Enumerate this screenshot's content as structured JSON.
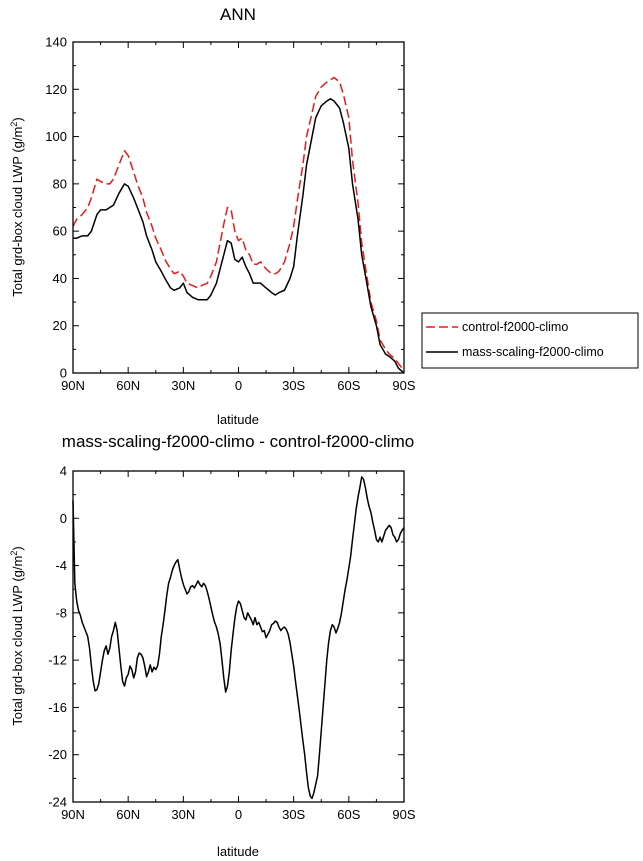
{
  "chart_data": [
    {
      "type": "line",
      "title": "ANN",
      "xlabel": "latitude",
      "ylabel": "Total grd-box cloud LWP (g/m",
      "ylabel_sup": "2",
      "ylabel_close": ")",
      "xlim": [
        90,
        -90
      ],
      "ylim": [
        0,
        140
      ],
      "xticks": [
        90,
        60,
        30,
        0,
        -30,
        -60,
        -90
      ],
      "xtick_labels": [
        "90N",
        "60N",
        "30N",
        "0",
        "30S",
        "60S",
        "90S"
      ],
      "yticks": [
        0,
        20,
        40,
        60,
        80,
        100,
        120,
        140
      ],
      "ytick_labels": [
        "0",
        "20",
        "40",
        "60",
        "80",
        "100",
        "120",
        "140"
      ],
      "grid": false,
      "legend_position": "outside-right",
      "series": [
        {
          "name": "control-f2000-climo",
          "color": "#e8191b",
          "dash": "dashed",
          "x": [
            90,
            88,
            85,
            82,
            80,
            77,
            75,
            72,
            70,
            68,
            65,
            62,
            60,
            57,
            55,
            52,
            50,
            47,
            45,
            42,
            40,
            37,
            35,
            32,
            30,
            28,
            25,
            22,
            20,
            17,
            15,
            12,
            10,
            8,
            6,
            4,
            2,
            0,
            -2,
            -4,
            -6,
            -8,
            -10,
            -12,
            -15,
            -18,
            -20,
            -22,
            -25,
            -28,
            -30,
            -32,
            -35,
            -37,
            -40,
            -42,
            -45,
            -48,
            -50,
            -52,
            -55,
            -57,
            -60,
            -62,
            -65,
            -67,
            -70,
            -72,
            -75,
            -77,
            -80,
            -82,
            -85,
            -87,
            -90
          ],
          "y": [
            62,
            65,
            67,
            70,
            74,
            82,
            81,
            80,
            80,
            82,
            88,
            94,
            92,
            85,
            80,
            74,
            68,
            62,
            57,
            52,
            48,
            44,
            42,
            43,
            41,
            38,
            37,
            36,
            37,
            38,
            41,
            47,
            55,
            63,
            70,
            69,
            60,
            56,
            57,
            52,
            50,
            46,
            46,
            47,
            44,
            42,
            42,
            43,
            47,
            55,
            62,
            73,
            88,
            100,
            110,
            117,
            121,
            123,
            124,
            125,
            123,
            118,
            108,
            90,
            72,
            55,
            40,
            30,
            22,
            14,
            10,
            8,
            6,
            4,
            1
          ]
        },
        {
          "name": "mass-scaling-f2000-climo",
          "color": "#000000",
          "dash": "solid",
          "x": [
            90,
            88,
            85,
            82,
            80,
            77,
            75,
            72,
            70,
            68,
            65,
            62,
            60,
            57,
            55,
            52,
            50,
            47,
            45,
            42,
            40,
            37,
            35,
            32,
            30,
            28,
            25,
            22,
            20,
            17,
            15,
            12,
            10,
            8,
            6,
            4,
            2,
            0,
            -2,
            -4,
            -6,
            -8,
            -10,
            -12,
            -15,
            -18,
            -20,
            -22,
            -25,
            -28,
            -30,
            -32,
            -35,
            -37,
            -40,
            -42,
            -45,
            -48,
            -50,
            -52,
            -55,
            -57,
            -60,
            -62,
            -65,
            -67,
            -70,
            -72,
            -75,
            -77,
            -80,
            -82,
            -85,
            -87,
            -90
          ],
          "y": [
            57,
            57,
            58,
            58,
            60,
            67,
            69,
            69,
            70,
            71,
            76,
            80,
            79,
            74,
            70,
            64,
            58,
            52,
            47,
            43,
            40,
            36,
            35,
            36,
            38,
            34,
            32,
            31,
            31,
            31,
            33,
            38,
            44,
            50,
            56,
            55,
            48,
            47,
            49,
            45,
            42,
            38,
            38,
            38,
            36,
            34,
            33,
            34,
            35,
            40,
            45,
            58,
            75,
            88,
            100,
            108,
            113,
            115,
            116,
            115,
            112,
            106,
            95,
            80,
            65,
            50,
            37,
            28,
            20,
            12,
            8,
            7,
            5,
            2,
            0
          ]
        }
      ]
    },
    {
      "type": "line",
      "title": "mass-scaling-f2000-climo - control-f2000-climo",
      "xlabel": "latitude",
      "ylabel": "Total grd-box cloud LWP (g/m",
      "ylabel_sup": "2",
      "ylabel_close": ")",
      "xlim": [
        90,
        -90
      ],
      "ylim": [
        -24,
        4
      ],
      "xticks": [
        90,
        60,
        30,
        0,
        -30,
        -60,
        -90
      ],
      "xtick_labels": [
        "90N",
        "60N",
        "30N",
        "0",
        "30S",
        "60S",
        "90S"
      ],
      "yticks": [
        -24,
        -20,
        -16,
        -12,
        -8,
        -4,
        0,
        4
      ],
      "ytick_labels": [
        "-24",
        "-20",
        "-16",
        "-12",
        "-8",
        "-4",
        "0",
        "4"
      ],
      "grid": false,
      "series": [
        {
          "color": "#000000",
          "dash": "solid",
          "x": [
            90,
            89.5,
            89,
            88,
            87,
            86,
            85,
            84,
            83,
            82,
            81,
            80,
            79,
            78,
            77,
            76,
            75,
            74,
            73,
            72,
            71,
            70,
            69,
            68,
            67,
            66,
            65,
            64,
            63,
            62,
            61,
            60,
            59,
            58,
            57,
            56,
            55,
            54,
            53,
            52,
            51,
            50,
            49,
            48,
            47,
            46,
            45,
            44,
            43,
            42,
            41,
            40,
            39,
            38,
            37,
            36,
            35,
            34,
            33,
            32,
            31,
            30,
            29,
            28,
            27,
            26,
            25,
            24,
            23,
            22,
            21,
            20,
            19,
            18,
            17,
            16,
            15,
            14,
            13,
            12,
            11,
            10,
            9,
            8,
            7,
            6,
            5,
            4,
            3,
            2,
            1,
            0,
            -1,
            -2,
            -3,
            -4,
            -5,
            -6,
            -7,
            -8,
            -9,
            -10,
            -11,
            -12,
            -13,
            -14,
            -15,
            -16,
            -17,
            -18,
            -19,
            -20,
            -21,
            -22,
            -23,
            -24,
            -25,
            -26,
            -27,
            -28,
            -29,
            -30,
            -31,
            -32,
            -33,
            -34,
            -35,
            -36,
            -37,
            -38,
            -39,
            -40,
            -41,
            -42,
            -43,
            -44,
            -45,
            -46,
            -47,
            -48,
            -49,
            -50,
            -51,
            -52,
            -53,
            -54,
            -55,
            -56,
            -57,
            -58,
            -59,
            -60,
            -61,
            -62,
            -63,
            -64,
            -65,
            -66,
            -67,
            -68,
            -69,
            -70,
            -71,
            -72,
            -73,
            -74,
            -75,
            -76,
            -77,
            -78,
            -79,
            -80,
            -81,
            -82,
            -83,
            -84,
            -85,
            -86,
            -87,
            -88,
            -89,
            -90
          ],
          "y": [
            1.5,
            -2,
            -5.5,
            -7,
            -7.8,
            -8.2,
            -8.8,
            -9.2,
            -9.6,
            -10,
            -11,
            -12.5,
            -13.8,
            -14.6,
            -14.5,
            -14,
            -13,
            -12,
            -11.2,
            -10.8,
            -11.5,
            -11,
            -10,
            -9.5,
            -8.8,
            -9.5,
            -11,
            -12.5,
            -13.8,
            -14.2,
            -13.5,
            -13.2,
            -12.5,
            -12.8,
            -13.5,
            -13,
            -11.8,
            -11.4,
            -11.5,
            -11.8,
            -12.5,
            -13.4,
            -13,
            -12.4,
            -13,
            -12.6,
            -12.8,
            -12.5,
            -11.5,
            -10,
            -9,
            -7.8,
            -6.5,
            -5.5,
            -5,
            -4.4,
            -4,
            -3.7,
            -3.5,
            -4.3,
            -5,
            -5.6,
            -6,
            -6.4,
            -6.2,
            -5.8,
            -5.7,
            -5.9,
            -5.6,
            -5.3,
            -5.6,
            -5.8,
            -5.5,
            -5.7,
            -6.2,
            -6.8,
            -7.5,
            -8.2,
            -8.8,
            -9.2,
            -9.8,
            -10.6,
            -12,
            -13.5,
            -14.7,
            -14.2,
            -13,
            -11.2,
            -9.8,
            -8.5,
            -7.5,
            -7,
            -7.2,
            -7.8,
            -8.4,
            -8.6,
            -8,
            -8.3,
            -8.6,
            -9,
            -8.4,
            -9,
            -8.8,
            -9.2,
            -9.6,
            -9.5,
            -10.1,
            -9.8,
            -9.5,
            -9,
            -8.9,
            -8.7,
            -8.8,
            -9.2,
            -9.5,
            -9.3,
            -9.2,
            -9.4,
            -9.8,
            -10.5,
            -11.5,
            -12.5,
            -13.8,
            -15,
            -16.2,
            -17.5,
            -18.8,
            -20,
            -21.5,
            -22.8,
            -23.5,
            -23.7,
            -23.2,
            -22.5,
            -21.8,
            -20,
            -18,
            -16,
            -14,
            -12,
            -10.5,
            -9.5,
            -9,
            -9.2,
            -9.7,
            -9.3,
            -8.8,
            -8,
            -7,
            -6,
            -5.2,
            -4.2,
            -3.2,
            -1.8,
            -0.5,
            0.8,
            1.8,
            2.6,
            3.5,
            3.3,
            2.6,
            1.7,
            1,
            0.5,
            -0.3,
            -1,
            -1.8,
            -2,
            -1.6,
            -2,
            -1.5,
            -1,
            -0.8,
            -0.6,
            -0.8,
            -1.4,
            -1.6,
            -2,
            -1.8,
            -1.3,
            -1,
            -0.8
          ]
        }
      ]
    }
  ]
}
